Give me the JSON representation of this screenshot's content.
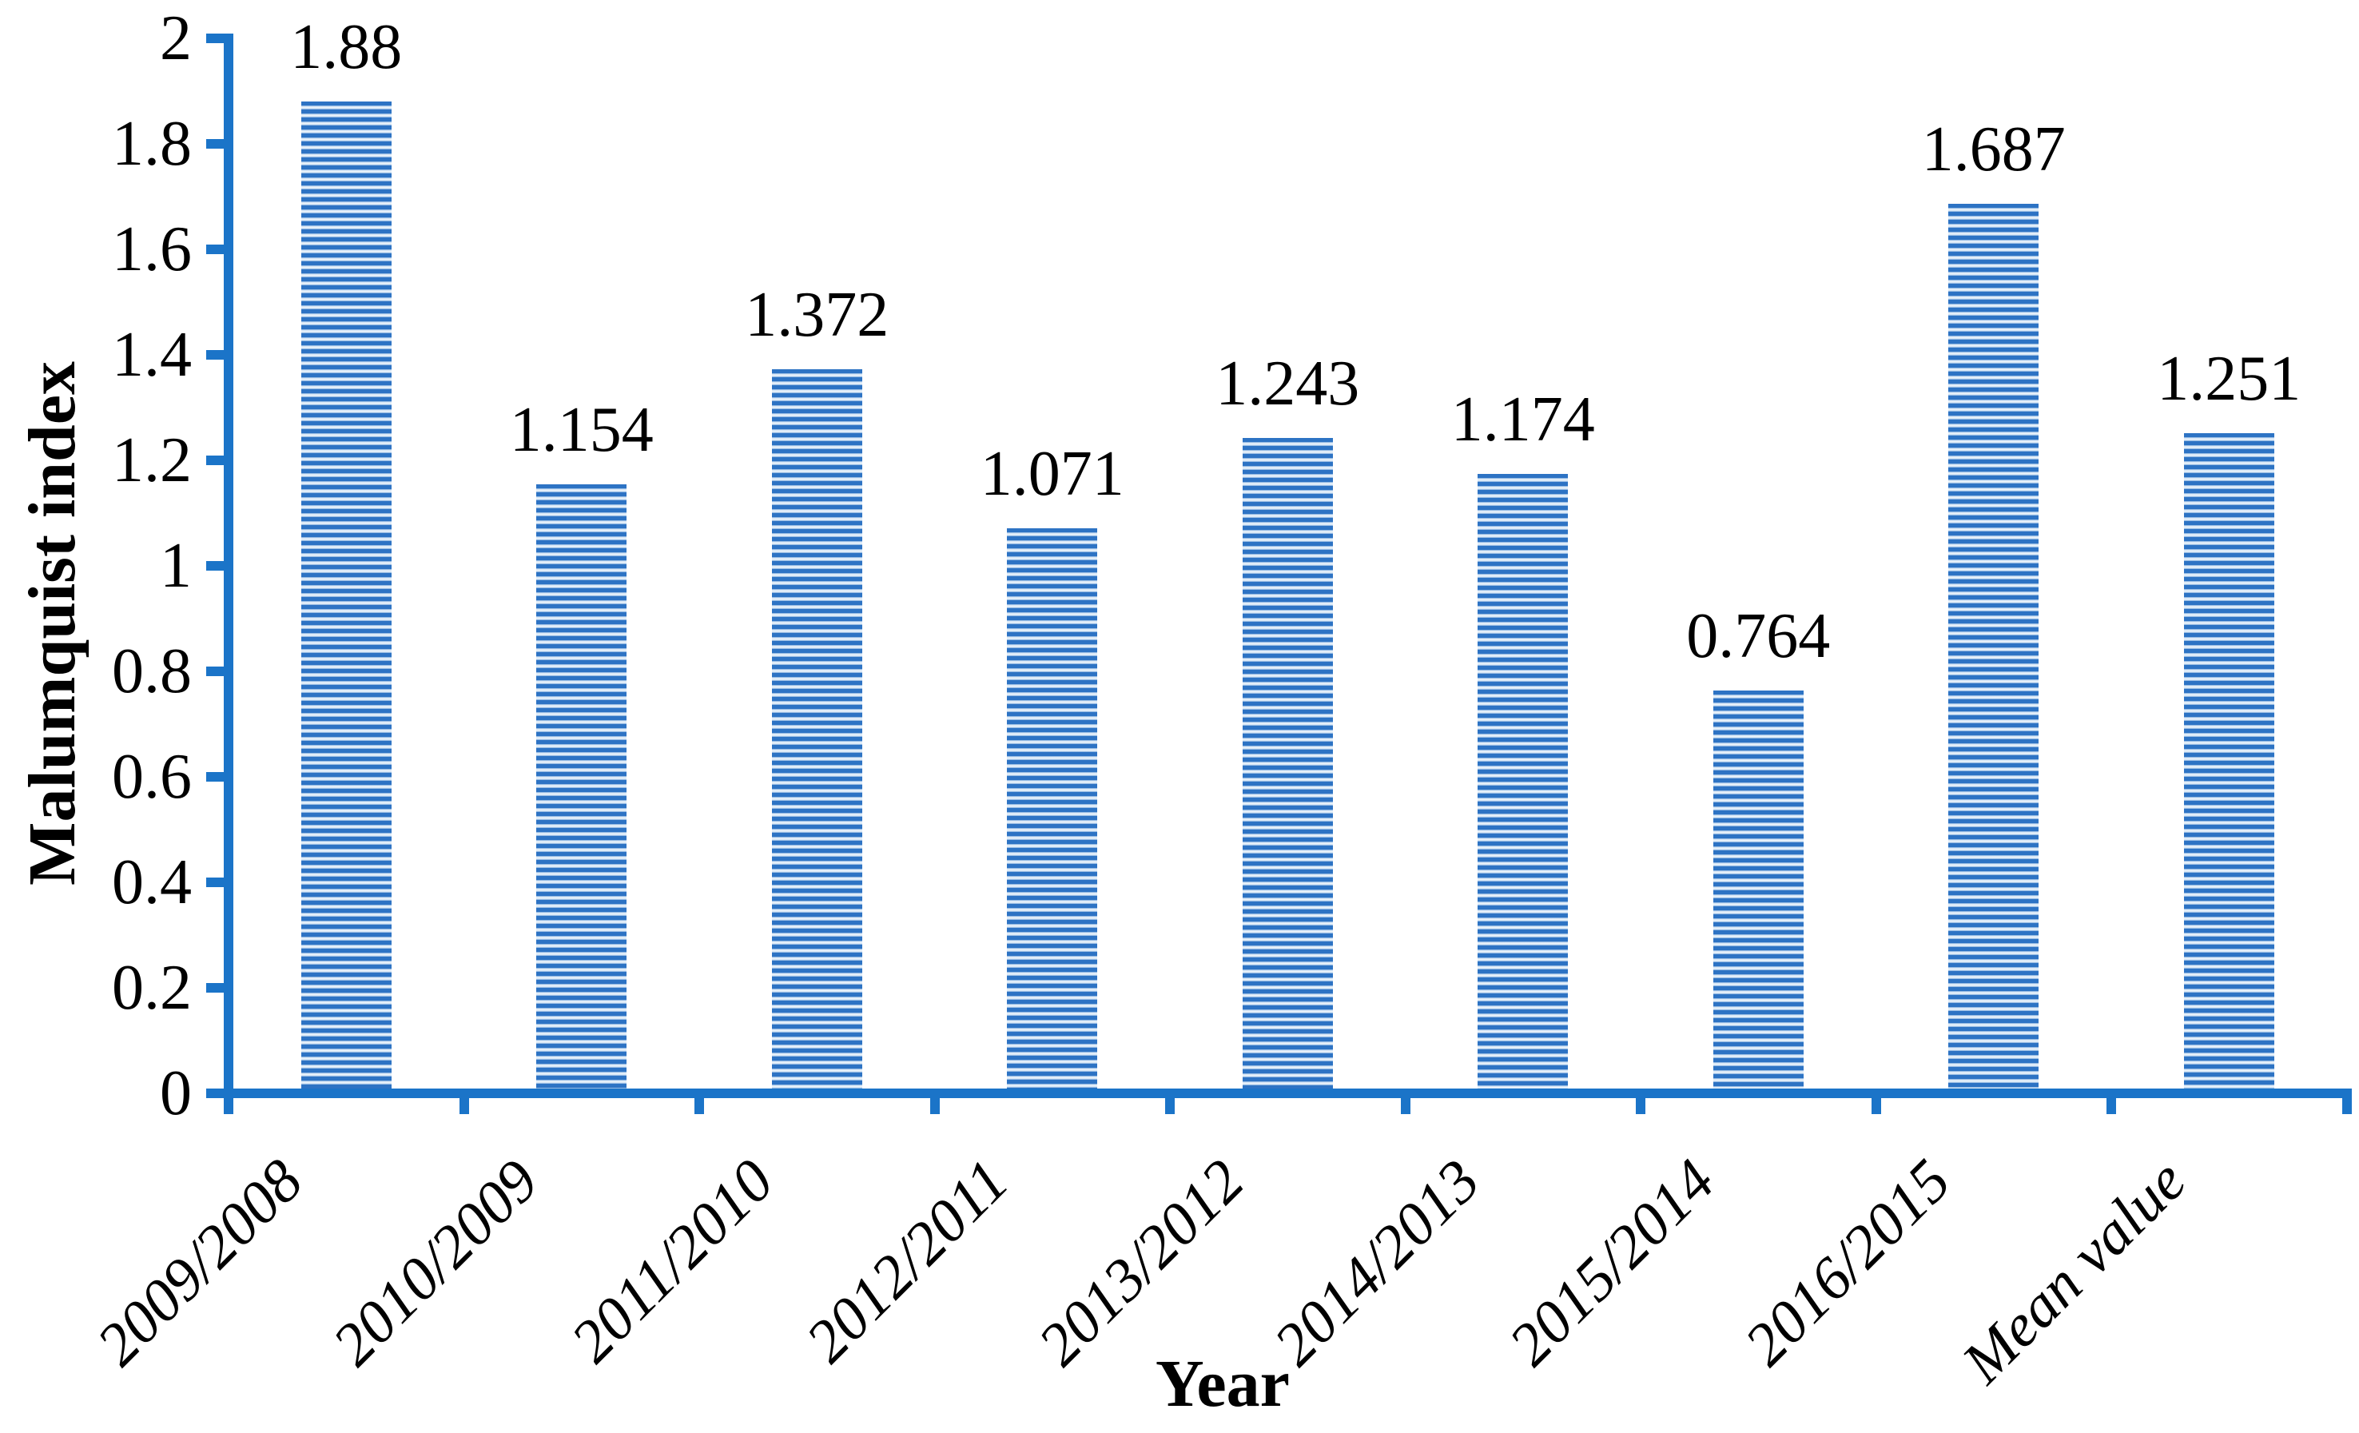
{
  "chart_data": {
    "type": "bar",
    "title": "",
    "xlabel": "Year",
    "ylabel": "Malumquist index",
    "categories": [
      "2009/2008",
      "2010/2009",
      "2011/2010",
      "2012/2011",
      "2013/2012",
      "2014/2013",
      "2015/2014",
      "2016/2015",
      "Mean value"
    ],
    "values": [
      1.88,
      1.154,
      1.372,
      1.071,
      1.243,
      1.174,
      0.764,
      1.687,
      1.251
    ],
    "data_labels": [
      "1.88",
      "1.154",
      "1.372",
      "1.071",
      "1.243",
      "1.174",
      "0.764",
      "1.687",
      "1.251"
    ],
    "ylim": [
      0,
      2
    ],
    "ytick_step": 0.2,
    "ytick_labels": [
      "0",
      "0.2",
      "0.4",
      "0.6",
      "0.8",
      "1",
      "1.2",
      "1.4",
      "1.6",
      "1.8",
      "2"
    ],
    "grid": false,
    "legend": "none",
    "colors": {
      "bar_stripe": "#2d73c4",
      "bar_stripe_light": "#f2f8fd",
      "axis": "#1b74c8",
      "text": "#000000"
    }
  }
}
